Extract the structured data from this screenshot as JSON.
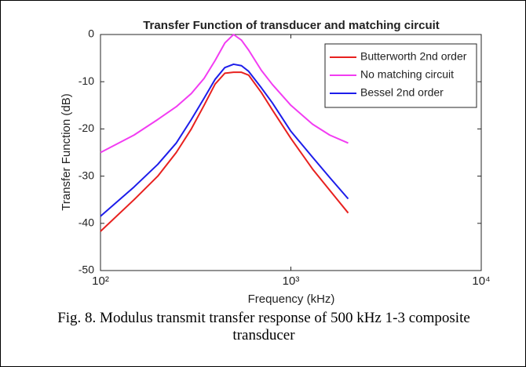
{
  "chart_data": {
    "type": "line",
    "title": "Transfer Function of transducer and matching circuit",
    "xlabel": "Frequency (kHz)",
    "ylabel": "Transfer Function (dB)",
    "caption": "Fig. 8. Modulus transmit transfer response of 500 kHz 1-3 composite transducer",
    "xscale": "log",
    "x": [
      100,
      150,
      200,
      250,
      300,
      350,
      400,
      450,
      500,
      550,
      600,
      700,
      800,
      1000,
      1300,
      1600,
      2000
    ],
    "series": [
      {
        "name": "Butterworth 2nd order",
        "color": "#e8211f",
        "values": [
          -41.7,
          -35,
          -30,
          -25,
          -20,
          -15,
          -10.5,
          -8.2,
          -8,
          -8,
          -8.6,
          -12.3,
          -16,
          -22,
          -28.5,
          -33,
          -37.8
        ]
      },
      {
        "name": "No matching circuit",
        "color": "#f23cf2",
        "values": [
          -25,
          -21.3,
          -18,
          -15.3,
          -12.5,
          -9.3,
          -5.5,
          -1.8,
          0,
          -1.2,
          -3.3,
          -7.6,
          -10.6,
          -15,
          -19,
          -21.3,
          -23
        ]
      },
      {
        "name": "Bessel 2nd order",
        "color": "#1d1dea",
        "values": [
          -38.5,
          -32.3,
          -27.5,
          -23,
          -18,
          -13.5,
          -9.5,
          -7,
          -6.3,
          -6.6,
          -7.8,
          -11.3,
          -14.5,
          -20.5,
          -26,
          -30.3,
          -34.8
        ]
      }
    ],
    "xlim": [
      100,
      10000
    ],
    "xticks": [
      {
        "value": 100,
        "label": "10²"
      },
      {
        "value": 1000,
        "label": "10³"
      },
      {
        "value": 10000,
        "label": "10⁴"
      }
    ],
    "ylim": [
      -50,
      0
    ],
    "yticks": [
      -50,
      -40,
      -30,
      -20,
      -10,
      0
    ],
    "legend": "upper right",
    "grid": false
  }
}
